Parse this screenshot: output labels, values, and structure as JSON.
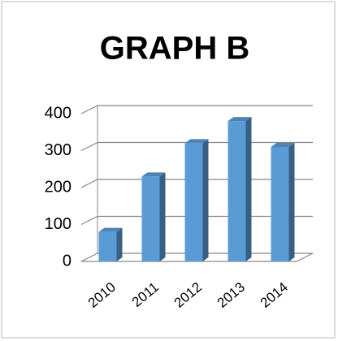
{
  "chart_data": {
    "type": "bar3d",
    "title": "GRAPH B",
    "categories": [
      "2010",
      "2011",
      "2012",
      "2013",
      "2014"
    ],
    "values": [
      80,
      230,
      320,
      380,
      310
    ],
    "color": "#5b9bd5",
    "ylim": [
      0,
      400
    ],
    "yticks": [
      0,
      100,
      200,
      300,
      400
    ],
    "grid": true
  }
}
